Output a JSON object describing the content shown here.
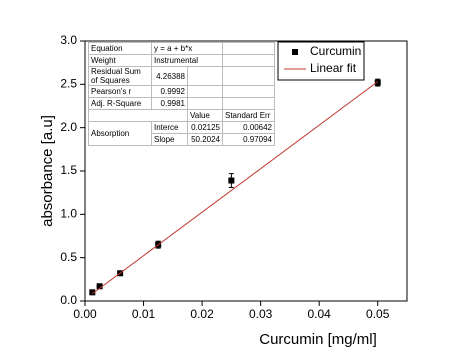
{
  "chart_data": {
    "type": "scatter",
    "x_label": "Curcumin [mg/ml]",
    "y_label": "absorbance [a.u]",
    "xlim": [
      0,
      0.055
    ],
    "ylim": [
      0,
      3.0
    ],
    "xticks": [
      {
        "value": 0,
        "label": "0.00"
      },
      0.01,
      0.02,
      0.03,
      0.04,
      0.05
    ],
    "yticks": [
      {
        "value": 0,
        "label": "0.0"
      },
      0.5,
      {
        "value": 1,
        "label": "1.0"
      },
      1.5,
      {
        "value": 2,
        "label": "2.0"
      },
      2.5,
      {
        "value": 3,
        "label": "3.0"
      }
    ],
    "series": [
      {
        "name": "Curcumin",
        "color": "#000000",
        "marker": "square",
        "x": [
          0.00125,
          0.0025,
          0.006,
          0.0125,
          0.025,
          0.05
        ],
        "values": [
          0.1,
          0.17,
          0.32,
          0.65,
          1.39,
          2.52
        ],
        "errors": [
          0.015,
          0.015,
          0.02,
          0.04,
          0.08,
          0.04
        ]
      },
      {
        "name": "Linear fit",
        "color": "#c0392b",
        "marker": "line",
        "x": [
          0.00125,
          0.05
        ],
        "values": [
          0.084,
          2.531
        ]
      }
    ],
    "table": {
      "rows": [
        [
          "Equation",
          "y = a + b*x"
        ],
        [
          "Weight",
          "Instrumental"
        ],
        [
          "Residual Sum of Squares",
          "4.26388"
        ],
        [
          "Pearson's r",
          "0.9992"
        ],
        [
          "Adj. R-Square",
          "0.9981"
        ]
      ],
      "header": [
        "Value",
        "Standard Err"
      ],
      "group": "Absorption",
      "params": [
        [
          "Interce",
          "0.02125",
          "0.00642"
        ],
        [
          "Slope",
          "50.2024",
          "0.97094"
        ]
      ]
    }
  }
}
